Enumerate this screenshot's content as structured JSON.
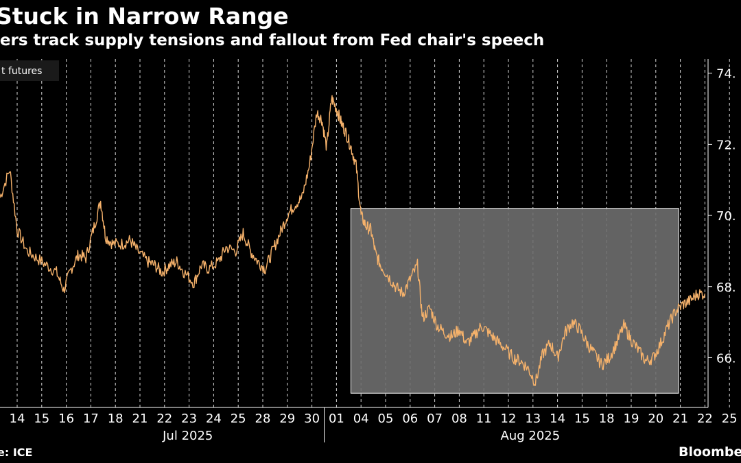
{
  "header": {
    "title": "Stuck in Narrow Range",
    "subtitle": "lers track supply tensions and fallout from Fed chair's speech"
  },
  "footer": {
    "source": "e: ICE",
    "brand": "Bloombe"
  },
  "colors": {
    "background": "#000000",
    "line": "#f6b26b",
    "highlight_box": "#6e6e6e",
    "text": "#ffffff",
    "grid": "#ffffff"
  },
  "chart_data": {
    "type": "line",
    "legend": {
      "label": "t futures",
      "placement": "top-left"
    },
    "ylim": [
      64.6,
      74.4
    ],
    "yticks": [
      66,
      68,
      70,
      72,
      74
    ],
    "ytick_labels": [
      "66.",
      "68.",
      "70.",
      "72.",
      "74."
    ],
    "grid": "vertical dashed at each trading day",
    "x_days": [
      "14",
      "15",
      "16",
      "17",
      "18",
      "21",
      "22",
      "23",
      "24",
      "25",
      "28",
      "29",
      "30",
      "01",
      "04",
      "05",
      "06",
      "07",
      "08",
      "11",
      "12",
      "13",
      "14",
      "15",
      "18",
      "19",
      "20",
      "21",
      "22",
      "25"
    ],
    "month_labels": [
      {
        "label": "Jul 2025",
        "day_start": "14",
        "day_end": "30"
      },
      {
        "label": "Aug 2025",
        "day_start": "01",
        "day_end": "25"
      }
    ],
    "highlight_range": {
      "from_day": "01",
      "to_day": "25",
      "y_min": 65.0,
      "y_max": 70.2
    },
    "series": [
      {
        "values": [
          [
            13.9,
            70.5
          ],
          [
            14.3,
            71.3
          ],
          [
            14.6,
            69.6
          ],
          [
            15.0,
            69.0
          ],
          [
            15.4,
            68.8
          ],
          [
            15.8,
            68.6
          ],
          [
            16.2,
            68.4
          ],
          [
            16.5,
            67.9
          ],
          [
            16.8,
            68.5
          ],
          [
            17.1,
            68.9
          ],
          [
            17.4,
            68.8
          ],
          [
            17.7,
            69.6
          ],
          [
            18.0,
            70.4
          ],
          [
            18.2,
            69.4
          ],
          [
            18.5,
            69.2
          ],
          [
            18.9,
            69.2
          ],
          [
            19.2,
            69.3
          ],
          [
            19.5,
            69.0
          ],
          [
            19.9,
            68.7
          ],
          [
            20.2,
            68.6
          ],
          [
            20.5,
            68.4
          ],
          [
            20.8,
            68.6
          ],
          [
            21.1,
            68.7
          ],
          [
            21.4,
            68.4
          ],
          [
            21.8,
            68.1
          ],
          [
            22.1,
            68.6
          ],
          [
            22.4,
            68.5
          ],
          [
            22.8,
            68.7
          ],
          [
            23.1,
            69.1
          ],
          [
            23.5,
            69.0
          ],
          [
            23.8,
            69.5
          ],
          [
            24.1,
            69.0
          ],
          [
            24.4,
            68.7
          ],
          [
            24.7,
            68.5
          ],
          [
            25.0,
            69.0
          ],
          [
            25.3,
            69.5
          ],
          [
            25.6,
            70.0
          ],
          [
            25.9,
            70.3
          ],
          [
            26.2,
            70.5
          ],
          [
            26.5,
            71.4
          ],
          [
            26.8,
            72.9
          ],
          [
            27.0,
            72.7
          ],
          [
            27.2,
            71.9
          ],
          [
            27.4,
            73.3
          ],
          [
            27.6,
            73.0
          ],
          [
            27.8,
            72.6
          ],
          [
            28.0,
            72.3
          ],
          [
            28.2,
            71.9
          ],
          [
            28.4,
            71.4
          ],
          [
            28.6,
            70.0
          ],
          [
            28.8,
            69.7
          ],
          [
            29.0,
            69.6
          ],
          [
            29.2,
            68.9
          ],
          [
            29.4,
            68.6
          ],
          [
            29.7,
            68.3
          ],
          [
            30.0,
            68.0
          ],
          [
            30.3,
            67.8
          ],
          [
            30.6,
            68.2
          ],
          [
            30.9,
            68.6
          ],
          [
            31.1,
            67.1
          ],
          [
            31.4,
            67.4
          ],
          [
            31.7,
            66.9
          ],
          [
            32.0,
            66.7
          ],
          [
            32.3,
            66.6
          ],
          [
            32.6,
            66.8
          ],
          [
            32.9,
            66.4
          ],
          [
            33.2,
            66.6
          ],
          [
            33.5,
            66.9
          ],
          [
            33.8,
            66.7
          ],
          [
            34.1,
            66.5
          ],
          [
            34.4,
            66.3
          ],
          [
            34.8,
            66.0
          ],
          [
            35.1,
            65.9
          ],
          [
            35.4,
            65.7
          ],
          [
            35.7,
            65.3
          ],
          [
            36.0,
            66.1
          ],
          [
            36.3,
            66.4
          ],
          [
            36.6,
            66.0
          ],
          [
            36.9,
            66.7
          ],
          [
            37.2,
            67.0
          ],
          [
            37.5,
            66.8
          ],
          [
            37.8,
            66.4
          ],
          [
            38.1,
            66.1
          ],
          [
            38.4,
            65.8
          ],
          [
            38.7,
            66.0
          ],
          [
            39.0,
            66.4
          ],
          [
            39.3,
            66.9
          ],
          [
            39.6,
            66.5
          ],
          [
            39.9,
            66.2
          ],
          [
            40.2,
            65.9
          ],
          [
            40.5,
            66.0
          ],
          [
            40.8,
            66.4
          ],
          [
            41.1,
            66.9
          ],
          [
            41.4,
            67.3
          ],
          [
            41.7,
            67.5
          ],
          [
            42.0,
            67.6
          ],
          [
            42.3,
            67.8
          ],
          [
            42.6,
            67.8
          ]
        ]
      }
    ]
  }
}
